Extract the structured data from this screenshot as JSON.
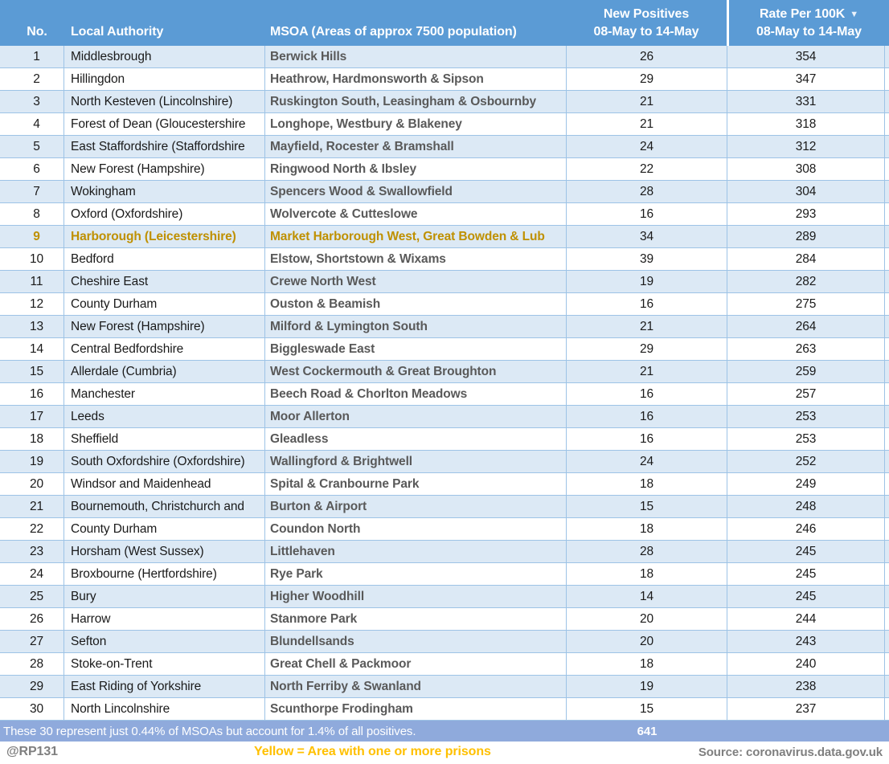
{
  "header": {
    "no": "No.",
    "local_authority": "Local Authority",
    "msoa": "MSOA (Areas of approx 7500 population)",
    "new_positives_line1": "New Positives",
    "new_positives_line2": "08-May to 14-May",
    "rate_line1": "Rate Per 100K",
    "rate_line2": "08-May to 14-May",
    "sort_icon": "▼"
  },
  "summary": {
    "note": "These 30 represent just 0.44% of MSOAs but account for 1.4% of all positives.",
    "total_new_positives": "641"
  },
  "footer": {
    "handle": "@RP131",
    "prison_legend": "Yellow = Area with one or more prisons",
    "source": "Source: coronavirus.data.gov.uk"
  },
  "colors": {
    "header_blue": "#5B9BD5",
    "row_stripe_blue": "#DCE9F5",
    "grid_blue": "#9DC3E6",
    "summary_band_blue": "#8FAADC",
    "prison_gold": "#BF9000",
    "legend_gold": "#FFC000",
    "footer_gray": "#7F7F7F"
  },
  "chart_data": {
    "type": "table",
    "columns": [
      "No.",
      "Local Authority",
      "MSOA (Areas of approx 7500 population)",
      "New Positives 08-May to 14-May",
      "Rate Per 100K 08-May to 14-May"
    ],
    "sort": "Rate Per 100K descending",
    "highlight_legend": "Yellow = Area with one or more prisons",
    "summary_note": "These 30 represent just 0.44% of MSOAs but account for 1.4% of all positives.",
    "total_new_positives": 641,
    "source": "Source: coronavirus.data.gov.uk",
    "rows": [
      {
        "no": 1,
        "local_authority": "Middlesbrough",
        "msoa": "Berwick Hills",
        "new_positives": 26,
        "rate_per_100k": 354,
        "prison": false
      },
      {
        "no": 2,
        "local_authority": "Hillingdon",
        "msoa": "Heathrow, Hardmonsworth & Sipson",
        "new_positives": 29,
        "rate_per_100k": 347,
        "prison": false
      },
      {
        "no": 3,
        "local_authority": "North Kesteven (Lincolnshire)",
        "msoa": "Ruskington South, Leasingham & Osbournby",
        "new_positives": 21,
        "rate_per_100k": 331,
        "prison": false
      },
      {
        "no": 4,
        "local_authority": "Forest of Dean (Gloucestershire",
        "msoa": "Longhope, Westbury & Blakeney",
        "new_positives": 21,
        "rate_per_100k": 318,
        "prison": false
      },
      {
        "no": 5,
        "local_authority": "East Staffordshire (Staffordshire",
        "msoa": "Mayfield, Rocester & Bramshall",
        "new_positives": 24,
        "rate_per_100k": 312,
        "prison": false
      },
      {
        "no": 6,
        "local_authority": "New Forest (Hampshire)",
        "msoa": "Ringwood North & Ibsley",
        "new_positives": 22,
        "rate_per_100k": 308,
        "prison": false
      },
      {
        "no": 7,
        "local_authority": "Wokingham",
        "msoa": "Spencers Wood & Swallowfield",
        "new_positives": 28,
        "rate_per_100k": 304,
        "prison": false
      },
      {
        "no": 8,
        "local_authority": "Oxford (Oxfordshire)",
        "msoa": "Wolvercote & Cutteslowe",
        "new_positives": 16,
        "rate_per_100k": 293,
        "prison": false
      },
      {
        "no": 9,
        "local_authority": "Harborough (Leicestershire)",
        "msoa": "Market Harborough West, Great Bowden & Lub",
        "new_positives": 34,
        "rate_per_100k": 289,
        "prison": true
      },
      {
        "no": 10,
        "local_authority": "Bedford",
        "msoa": "Elstow, Shortstown & Wixams",
        "new_positives": 39,
        "rate_per_100k": 284,
        "prison": false
      },
      {
        "no": 11,
        "local_authority": "Cheshire East",
        "msoa": "Crewe North West",
        "new_positives": 19,
        "rate_per_100k": 282,
        "prison": false
      },
      {
        "no": 12,
        "local_authority": "County Durham",
        "msoa": "Ouston & Beamish",
        "new_positives": 16,
        "rate_per_100k": 275,
        "prison": false
      },
      {
        "no": 13,
        "local_authority": "New Forest (Hampshire)",
        "msoa": "Milford & Lymington South",
        "new_positives": 21,
        "rate_per_100k": 264,
        "prison": false
      },
      {
        "no": 14,
        "local_authority": "Central Bedfordshire",
        "msoa": "Biggleswade East",
        "new_positives": 29,
        "rate_per_100k": 263,
        "prison": false
      },
      {
        "no": 15,
        "local_authority": "Allerdale (Cumbria)",
        "msoa": "West Cockermouth & Great Broughton",
        "new_positives": 21,
        "rate_per_100k": 259,
        "prison": false
      },
      {
        "no": 16,
        "local_authority": "Manchester",
        "msoa": "Beech Road & Chorlton Meadows",
        "new_positives": 16,
        "rate_per_100k": 257,
        "prison": false
      },
      {
        "no": 17,
        "local_authority": "Leeds",
        "msoa": "Moor Allerton",
        "new_positives": 16,
        "rate_per_100k": 253,
        "prison": false
      },
      {
        "no": 18,
        "local_authority": "Sheffield",
        "msoa": "Gleadless",
        "new_positives": 16,
        "rate_per_100k": 253,
        "prison": false
      },
      {
        "no": 19,
        "local_authority": "South Oxfordshire (Oxfordshire)",
        "msoa": "Wallingford & Brightwell",
        "new_positives": 24,
        "rate_per_100k": 252,
        "prison": false
      },
      {
        "no": 20,
        "local_authority": "Windsor and Maidenhead",
        "msoa": "Spital & Cranbourne Park",
        "new_positives": 18,
        "rate_per_100k": 249,
        "prison": false
      },
      {
        "no": 21,
        "local_authority": "Bournemouth, Christchurch and",
        "msoa": "Burton & Airport",
        "new_positives": 15,
        "rate_per_100k": 248,
        "prison": false
      },
      {
        "no": 22,
        "local_authority": "County Durham",
        "msoa": "Coundon North",
        "new_positives": 18,
        "rate_per_100k": 246,
        "prison": false
      },
      {
        "no": 23,
        "local_authority": "Horsham (West Sussex)",
        "msoa": "Littlehaven",
        "new_positives": 28,
        "rate_per_100k": 245,
        "prison": false
      },
      {
        "no": 24,
        "local_authority": "Broxbourne (Hertfordshire)",
        "msoa": "Rye Park",
        "new_positives": 18,
        "rate_per_100k": 245,
        "prison": false
      },
      {
        "no": 25,
        "local_authority": "Bury",
        "msoa": "Higher Woodhill",
        "new_positives": 14,
        "rate_per_100k": 245,
        "prison": false
      },
      {
        "no": 26,
        "local_authority": "Harrow",
        "msoa": "Stanmore Park",
        "new_positives": 20,
        "rate_per_100k": 244,
        "prison": false
      },
      {
        "no": 27,
        "local_authority": "Sefton",
        "msoa": "Blundellsands",
        "new_positives": 20,
        "rate_per_100k": 243,
        "prison": false
      },
      {
        "no": 28,
        "local_authority": "Stoke-on-Trent",
        "msoa": "Great Chell & Packmoor",
        "new_positives": 18,
        "rate_per_100k": 240,
        "prison": false
      },
      {
        "no": 29,
        "local_authority": "East Riding of Yorkshire",
        "msoa": "North Ferriby & Swanland",
        "new_positives": 19,
        "rate_per_100k": 238,
        "prison": false
      },
      {
        "no": 30,
        "local_authority": "North Lincolnshire",
        "msoa": "Scunthorpe Frodingham",
        "new_positives": 15,
        "rate_per_100k": 237,
        "prison": false
      }
    ]
  }
}
